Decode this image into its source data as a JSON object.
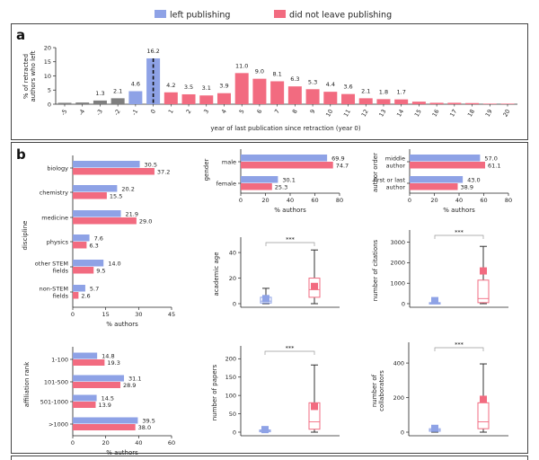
{
  "legend": {
    "items": [
      {
        "label": "left publishing",
        "color": "#8ea2e6"
      },
      {
        "label": "did not leave publishing",
        "color": "#f26b80"
      }
    ]
  },
  "panels": {
    "a": "a",
    "b": "b"
  },
  "colors": {
    "left": "#8ea2e6",
    "stayed": "#f26b80",
    "before": "#7f7f7f"
  },
  "chart_data": [
    {
      "id": "a",
      "type": "bar",
      "title": "",
      "xlabel": "year of last publication since retraction (year 0)",
      "ylabel": [
        "% of retracted",
        "authors who left"
      ],
      "ylim": [
        0,
        20
      ],
      "yticks": [
        0,
        5,
        10,
        15,
        20
      ],
      "categories": [
        "-5",
        "-4",
        "-3",
        "-2",
        "-1",
        "0",
        "1",
        "2",
        "3",
        "4",
        "5",
        "6",
        "7",
        "8",
        "9",
        "10",
        "11",
        "12",
        "13",
        "14",
        "15",
        "16",
        "17",
        "18",
        "19",
        "20"
      ],
      "values": [
        0.5,
        0.6,
        1.3,
        2.1,
        4.6,
        16.2,
        4.2,
        3.5,
        3.1,
        3.9,
        11.0,
        9.0,
        8.1,
        6.3,
        5.3,
        4.4,
        3.6,
        2.1,
        1.8,
        1.7,
        0.9,
        0.5,
        0.5,
        0.4,
        0.2,
        0.2
      ],
      "value_labels": [
        "",
        "",
        "1.3",
        "2.1",
        "4.6",
        "16.2",
        "4.2",
        "3.5",
        "3.1",
        "3.9",
        "11.0",
        "9.0",
        "8.1",
        "6.3",
        "5.3",
        "4.4",
        "3.6",
        "2.1",
        "1.8",
        "1.7",
        "",
        "",
        "",
        "",
        "",
        ""
      ],
      "bar_groups": [
        "before",
        "before",
        "before",
        "before",
        "left",
        "left",
        "stayed",
        "stayed",
        "stayed",
        "stayed",
        "stayed",
        "stayed",
        "stayed",
        "stayed",
        "stayed",
        "stayed",
        "stayed",
        "stayed",
        "stayed",
        "stayed",
        "stayed",
        "stayed",
        "stayed",
        "stayed",
        "stayed",
        "stayed"
      ],
      "annotation": "dashed line at year 0"
    },
    {
      "id": "discipline",
      "type": "bar",
      "orientation": "horizontal",
      "ylabel": "discipline",
      "xlabel": "% authors",
      "xlim": [
        0,
        45
      ],
      "xticks": [
        0,
        15,
        30,
        45
      ],
      "categories": [
        "biology",
        "chemistry",
        "medicine",
        "physics",
        "other STEM\nfields",
        "non-STEM\nfields"
      ],
      "series": [
        {
          "name": "left publishing",
          "values": [
            30.5,
            20.2,
            21.9,
            7.6,
            14.0,
            5.7
          ],
          "labels": [
            "30.5",
            "20.2",
            "21.9",
            "7.6",
            "14.0",
            "5.7"
          ]
        },
        {
          "name": "did not leave publishing",
          "values": [
            37.2,
            15.5,
            29.0,
            6.3,
            9.5,
            2.6
          ],
          "labels": [
            "37.2",
            "15.5",
            "29.0",
            "6.3",
            "9.5",
            "2.6"
          ]
        }
      ]
    },
    {
      "id": "gender",
      "type": "bar",
      "orientation": "horizontal",
      "ylabel": "gender",
      "xlabel": "% authors",
      "xlim": [
        0,
        80
      ],
      "xticks": [
        0,
        20,
        40,
        60,
        80
      ],
      "categories": [
        "male",
        "female"
      ],
      "series": [
        {
          "name": "left publishing",
          "values": [
            69.9,
            30.1
          ],
          "labels": [
            "69.9",
            "30.1"
          ]
        },
        {
          "name": "did not leave publishing",
          "values": [
            74.7,
            25.3
          ],
          "labels": [
            "74.7",
            "25.3"
          ]
        }
      ]
    },
    {
      "id": "author_order",
      "type": "bar",
      "orientation": "horizontal",
      "ylabel": "author order",
      "xlabel": "% authors",
      "xlim": [
        0,
        80
      ],
      "xticks": [
        0,
        20,
        40,
        60,
        80
      ],
      "categories": [
        "middle\nauthor",
        "first or last\nauthor"
      ],
      "series": [
        {
          "name": "left publishing",
          "values": [
            57.0,
            43.0
          ],
          "labels": [
            "57.0",
            "43.0"
          ]
        },
        {
          "name": "did not leave publishing",
          "values": [
            61.1,
            38.9
          ],
          "labels": [
            "61.1",
            "38.9"
          ]
        }
      ]
    },
    {
      "id": "affiliation",
      "type": "bar",
      "orientation": "horizontal",
      "ylabel": "affiliation rank",
      "xlabel": "% authors",
      "xlim": [
        0,
        60
      ],
      "xticks": [
        0,
        20,
        40,
        60
      ],
      "categories": [
        "1-100",
        "101-500",
        "501-1000",
        ">1000"
      ],
      "series": [
        {
          "name": "left publishing",
          "values": [
            14.8,
            31.1,
            14.5,
            39.5
          ],
          "labels": [
            "14.8",
            "31.1",
            "14.5",
            "39.5"
          ]
        },
        {
          "name": "did not leave publishing",
          "values": [
            19.3,
            28.9,
            13.9,
            38.0
          ],
          "labels": [
            "19.3",
            "28.9",
            "13.9",
            "38.0"
          ]
        }
      ]
    },
    {
      "id": "age",
      "type": "box",
      "ylabel": "academic age",
      "ylim": [
        0,
        52
      ],
      "yticks": [
        0,
        20,
        40
      ],
      "significance": "***",
      "groups": [
        {
          "name": "left publishing",
          "whisker": [
            0,
            12
          ],
          "box": [
            0.5,
            5
          ],
          "median": 2,
          "mean": 4
        },
        {
          "name": "did not leave publishing",
          "whisker": [
            0,
            42
          ],
          "box": [
            5,
            20
          ],
          "median": 11,
          "mean": 13.5
        }
      ]
    },
    {
      "id": "citations",
      "type": "box",
      "ylabel": "number of citations",
      "ylim": [
        0,
        3600
      ],
      "yticks": [
        0,
        1000,
        2000,
        3000
      ],
      "significance": "***",
      "groups": [
        {
          "name": "left publishing",
          "whisker": [
            0,
            100
          ],
          "box": [
            0,
            50
          ],
          "median": 20,
          "mean": 150
        },
        {
          "name": "did not leave publishing",
          "whisker": [
            0,
            2800
          ],
          "box": [
            50,
            1150
          ],
          "median": 250,
          "mean": 1600
        }
      ]
    },
    {
      "id": "papers",
      "type": "box",
      "ylabel": "number of papers",
      "ylim": [
        0,
        235
      ],
      "yticks": [
        0,
        50,
        100,
        150,
        200
      ],
      "significance": "***",
      "groups": [
        {
          "name": "left publishing",
          "whisker": [
            0,
            10
          ],
          "box": [
            1,
            6
          ],
          "median": 4,
          "mean": 7
        },
        {
          "name": "did not leave publishing",
          "whisker": [
            0,
            183
          ],
          "box": [
            8,
            80
          ],
          "median": 28,
          "mean": 70
        }
      ]
    },
    {
      "id": "collaborators",
      "type": "box",
      "ylabel": [
        "number of",
        "collaborators"
      ],
      "ylim": [
        0,
        520
      ],
      "yticks": [
        0,
        200,
        400
      ],
      "significance": "***",
      "groups": [
        {
          "name": "left publishing",
          "whisker": [
            0,
            30
          ],
          "box": [
            5,
            20
          ],
          "median": 12,
          "mean": 22
        },
        {
          "name": "did not leave publishing",
          "whisker": [
            0,
            395
          ],
          "box": [
            20,
            170
          ],
          "median": 60,
          "mean": 190
        }
      ]
    }
  ]
}
